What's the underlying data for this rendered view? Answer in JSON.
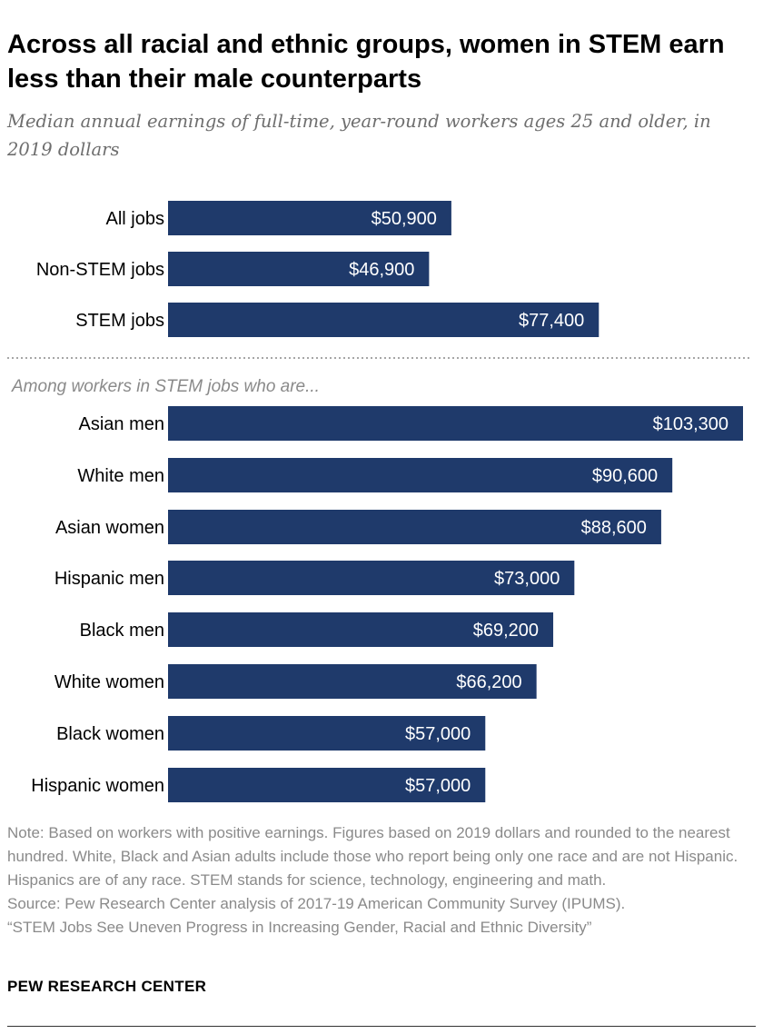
{
  "title": "Across all racial and ethnic groups, women in STEM earn less than their male counterparts",
  "subtitle": "Median annual earnings of full-time, year-round workers ages 25 and older, in 2019 dollars",
  "colors": {
    "bar": "#1f3a6b",
    "divider": "#8a8a8a"
  },
  "chart_data": [
    {
      "type": "bar",
      "orientation": "horizontal",
      "categories": [
        "All jobs",
        "Non-STEM jobs",
        "STEM jobs"
      ],
      "values": [
        50900,
        46900,
        77400
      ],
      "value_labels": [
        "$50,900",
        "$46,900",
        "$77,400"
      ],
      "title": "",
      "xlabel": "",
      "ylabel": ""
    },
    {
      "type": "bar",
      "orientation": "horizontal",
      "section_label": "Among workers in STEM jobs who are...",
      "categories": [
        "Asian men",
        "White men",
        "Asian women",
        "Hispanic men",
        "Black men",
        "White women",
        "Black women",
        "Hispanic women"
      ],
      "values": [
        103300,
        90600,
        88600,
        73000,
        69200,
        66200,
        57000,
        57000
      ],
      "value_labels": [
        "$103,300",
        "$90,600",
        "$88,600",
        "$73,000",
        "$69,200",
        "$66,200",
        "$57,000",
        "$57,000"
      ],
      "title": "",
      "xlabel": "",
      "ylabel": ""
    }
  ],
  "note": "Note: Based on workers with positive earnings. Figures based on 2019 dollars and rounded to the nearest hundred. White, Black and Asian adults include those who report being only one race and are not Hispanic. Hispanics are of any race. STEM stands for science, technology, engineering and math.",
  "source": "Source: Pew Research Center analysis of 2017-19 American Community Survey (IPUMS).",
  "report": "“STEM Jobs See Uneven Progress in Increasing Gender, Racial and Ethnic Diversity”",
  "brand": "PEW RESEARCH CENTER"
}
